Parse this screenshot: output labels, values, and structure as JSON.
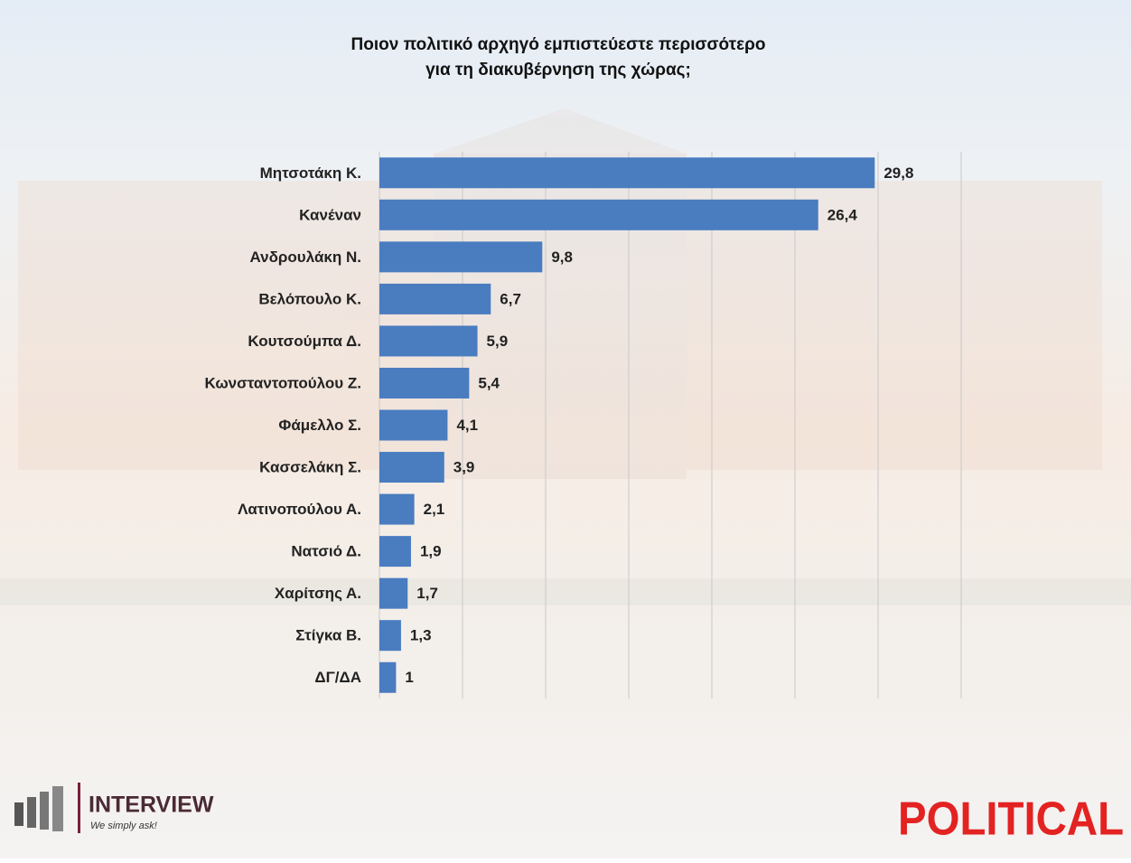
{
  "chart_data": {
    "type": "barh",
    "title": [
      "Ποιον πολιτικό αρχηγό εμπιστεύεστε περισσότερο",
      "για τη διακυβέρνηση της χώρας;"
    ],
    "categories": [
      "Μητσοτάκη Κ.",
      "Κανέναν",
      "Ανδρουλάκη Ν.",
      "Βελόπουλο Κ.",
      "Κουτσούμπα Δ.",
      "Κωνσταντοπούλου Ζ.",
      "Φάμελλο Σ.",
      "Κασσελάκη Σ.",
      "Λατινοπούλου Α.",
      "Νατσιό Δ.",
      "Χαρίτσης Α.",
      "Στίγκα Β.",
      "ΔΓ/ΔΑ"
    ],
    "values": [
      29.8,
      26.4,
      9.8,
      6.7,
      5.9,
      5.4,
      4.1,
      3.9,
      2.1,
      1.9,
      1.7,
      1.3,
      1
    ],
    "value_labels": [
      "29,8",
      "26,4",
      "9,8",
      "6,7",
      "5,9",
      "5,4",
      "4,1",
      "3,9",
      "2,1",
      "1,9",
      "1,7",
      "1,3",
      "1"
    ],
    "color": "#4a7cc0",
    "xlim": [
      0,
      35
    ],
    "xticks": [
      0,
      5,
      10,
      15,
      20,
      25,
      30,
      35
    ],
    "grid": true
  },
  "footer": {
    "left_logo": "INTERVIEW",
    "left_tagline": "We simply ask!",
    "right_logo": "POLITICAL"
  }
}
